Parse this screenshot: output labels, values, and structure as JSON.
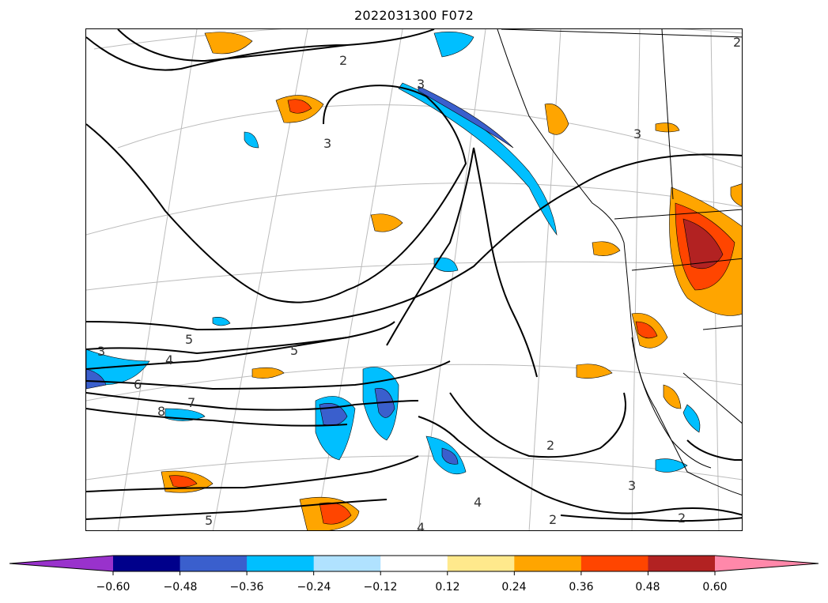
{
  "title": "2022031300 F072",
  "contour_labels": [
    "2",
    "3",
    "2",
    "3",
    "3",
    "4",
    "5",
    "6",
    "7",
    "8",
    "5",
    "2",
    "3",
    "2",
    "4",
    "2",
    "3",
    "5",
    "4"
  ],
  "colorbar": {
    "ticks": [
      "−0.60",
      "−0.48",
      "−0.36",
      "−0.24",
      "−0.12",
      "0.12",
      "0.24",
      "0.36",
      "0.48",
      "0.60"
    ],
    "colors": [
      "#9932cc",
      "#00008b",
      "#3a5fcd",
      "#00bfff",
      "#b0e2ff",
      "#ffffff",
      "#ffe98c",
      "#ffa500",
      "#ff4500",
      "#b22222",
      "#ff88aa"
    ]
  }
}
